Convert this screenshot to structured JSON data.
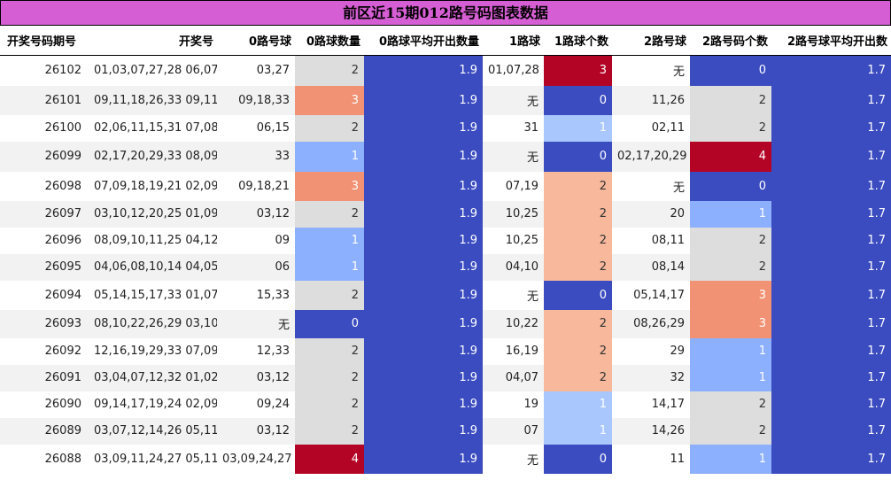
{
  "chart_data": {
    "type": "table",
    "title": "前区近15期012路号码图表数据",
    "columns": [
      "开奖号码期号",
      "开奖号",
      "0路号球",
      "0路球数量",
      "0路球平均开出数量",
      "1路球",
      "1路球个数",
      "2路号球",
      "2路号码个数",
      "2路号球平均开出数"
    ],
    "rows": [
      [
        "26102",
        "01,03,07,27,28 06,07",
        "03,27",
        2,
        1.9,
        "01,07,28",
        3,
        "无",
        0,
        1.7
      ],
      [
        "26101",
        "09,11,18,26,33 09,11",
        "09,18,33",
        3,
        1.9,
        "无",
        0,
        "11,26",
        2,
        1.7
      ],
      [
        "26100",
        "02,06,11,15,31 07,08",
        "06,15",
        2,
        1.9,
        "31",
        1,
        "02,11",
        2,
        1.7
      ],
      [
        "26099",
        "02,17,20,29,33 08,09",
        "33",
        1,
        1.9,
        "无",
        0,
        "02,17,20,29",
        4,
        1.7
      ],
      [
        "26098",
        "07,09,18,19,21 02,09",
        "09,18,21",
        3,
        1.9,
        "07,19",
        2,
        "无",
        0,
        1.7
      ],
      [
        "26097",
        "03,10,12,20,25 01,09",
        "03,12",
        2,
        1.9,
        "10,25",
        2,
        "20",
        1,
        1.7
      ],
      [
        "26096",
        "08,09,10,11,25 04,12",
        "09",
        1,
        1.9,
        "10,25",
        2,
        "08,11",
        2,
        1.7
      ],
      [
        "26095",
        "04,06,08,10,14 04,05",
        "06",
        1,
        1.9,
        "04,10",
        2,
        "08,14",
        2,
        1.7
      ],
      [
        "26094",
        "05,14,15,17,33 01,07",
        "15,33",
        2,
        1.9,
        "无",
        0,
        "05,14,17",
        3,
        1.7
      ],
      [
        "26093",
        "08,10,22,26,29 03,10",
        "无",
        0,
        1.9,
        "10,22",
        2,
        "08,26,29",
        3,
        1.7
      ],
      [
        "26092",
        "12,16,19,29,33 07,09",
        "12,33",
        2,
        1.9,
        "16,19",
        2,
        "29",
        1,
        1.7
      ],
      [
        "26091",
        "03,04,07,12,32 01,02",
        "03,12",
        2,
        1.9,
        "04,07",
        2,
        "32",
        1,
        1.7
      ],
      [
        "26090",
        "09,14,17,19,24 02,09",
        "09,24",
        2,
        1.9,
        "19",
        1,
        "14,17",
        2,
        1.7
      ],
      [
        "26089",
        "03,07,12,14,26 05,11",
        "03,12",
        2,
        1.9,
        "07",
        1,
        "14,26",
        2,
        1.7
      ],
      [
        "26088",
        "03,09,11,24,27 05,11",
        "03,09,24,27",
        4,
        1.9,
        "无",
        0,
        "11",
        1,
        1.7
      ]
    ],
    "heatmap_columns": [
      3,
      4,
      6,
      8,
      9
    ],
    "colors": {
      "title_bg": "#d65ed4",
      "heat_0": "#3b4cc0",
      "heat_1": "#8db0fe",
      "heat_1_light": "#aac7fd",
      "heat_2": "#dddddd",
      "heat_2_warm": "#f7b89c",
      "heat_3": "#f29274",
      "heat_3_dark": "#b40426",
      "heat_4": "#b40426",
      "avg": "#3b4cc0"
    }
  }
}
